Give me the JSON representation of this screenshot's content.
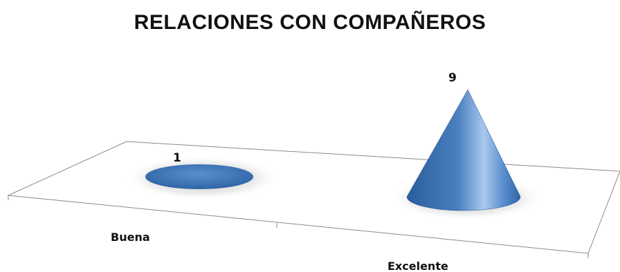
{
  "chart_data": {
    "type": "bar",
    "subtype": "3d-cone",
    "title": "RELACIONES CON COMPAÑEROS",
    "categories": [
      "Buena",
      "Excelente"
    ],
    "values": [
      1,
      9
    ],
    "data_labels": [
      "1",
      "9"
    ],
    "grid": false,
    "legend": "none",
    "colors": {
      "cone": "#4a7fc0",
      "cone_dark": "#2a5d9b",
      "cone_light": "#a9c8ee",
      "floor_edge": "#8a8a8a"
    }
  }
}
